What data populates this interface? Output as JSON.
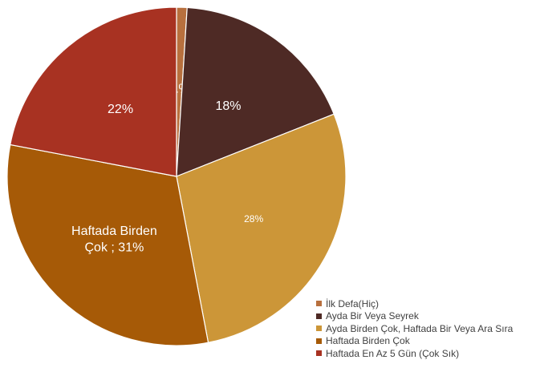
{
  "chart_data": {
    "type": "pie",
    "categories": [
      "İlk Defa(Hiç)",
      "Ayda Bir Veya Seyrek",
      "Ayda Birden Çok, Haftada Bir Veya Ara Sıra",
      "Haftada Birden Çok",
      "Haftada En Az 5 Gün (Çok Sık)"
    ],
    "values": [
      1,
      18,
      28,
      31,
      22
    ],
    "colors": [
      "#b8703e",
      "#4e2a25",
      "#cc9638",
      "#a65a07",
      "#a83222"
    ],
    "data_labels": [
      "1%",
      "18%",
      "28%",
      "Haftada Birden\nÇok ; 31%",
      "22%"
    ],
    "legend_position": "bottom-right",
    "title": ""
  }
}
